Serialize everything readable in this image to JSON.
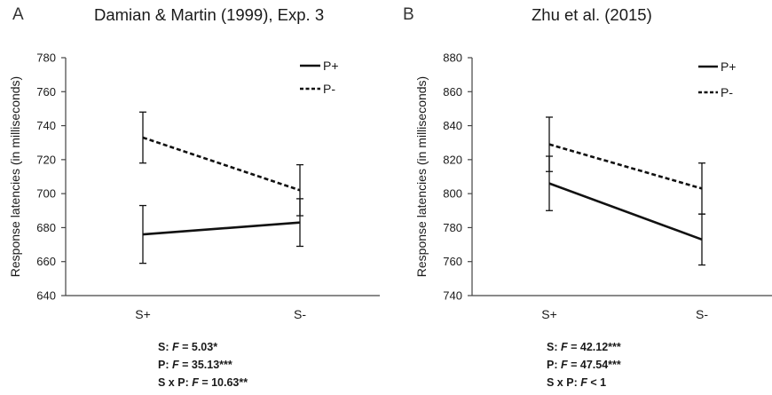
{
  "chart_data": [
    {
      "type": "line",
      "panel_letter": "A",
      "title": "Damian & Martin (1999), Exp. 3",
      "xlabel": "",
      "ylabel": "Response latencies (in milliseconds)",
      "categories": [
        "S+",
        "S-"
      ],
      "ylim": [
        640,
        780
      ],
      "yticks": [
        640,
        660,
        680,
        700,
        720,
        740,
        760,
        780
      ],
      "grid": false,
      "legend_position": "top-right",
      "series": [
        {
          "name": "P+",
          "style": "solid",
          "values": [
            676,
            683
          ],
          "error": [
            17,
            14
          ]
        },
        {
          "name": "P-",
          "style": "dashed",
          "values": [
            733,
            702
          ],
          "error": [
            15,
            15
          ]
        }
      ],
      "stats": [
        {
          "prefix": "S: ",
          "stat": "F",
          "rest": " = 5.03*"
        },
        {
          "prefix": "P: ",
          "stat": "F",
          "rest": " = 35.13***"
        },
        {
          "prefix": "S x P: ",
          "stat": "F",
          "rest": " = 10.63**"
        }
      ]
    },
    {
      "type": "line",
      "panel_letter": "B",
      "title": "Zhu et al. (2015)",
      "xlabel": "",
      "ylabel": "Response latencies (in milliseconds)",
      "categories": [
        "S+",
        "S-"
      ],
      "ylim": [
        740,
        880
      ],
      "yticks": [
        740,
        760,
        780,
        800,
        820,
        840,
        860,
        880
      ],
      "grid": false,
      "legend_position": "top-right",
      "series": [
        {
          "name": "P+",
          "style": "solid",
          "values": [
            806,
            773
          ],
          "error": [
            16,
            15
          ]
        },
        {
          "name": "P-",
          "style": "dashed",
          "values": [
            829,
            803
          ],
          "error": [
            16,
            15
          ]
        }
      ],
      "stats": [
        {
          "prefix": "S: ",
          "stat": "F",
          "rest": " = 42.12***"
        },
        {
          "prefix": "P: ",
          "stat": "F",
          "rest": " = 47.54***"
        },
        {
          "prefix": "S x P: ",
          "stat": "F",
          "rest": " < 1"
        }
      ]
    }
  ],
  "colors": {
    "line": "#111111",
    "axis": "#444444",
    "text": "#1a1a1a"
  }
}
